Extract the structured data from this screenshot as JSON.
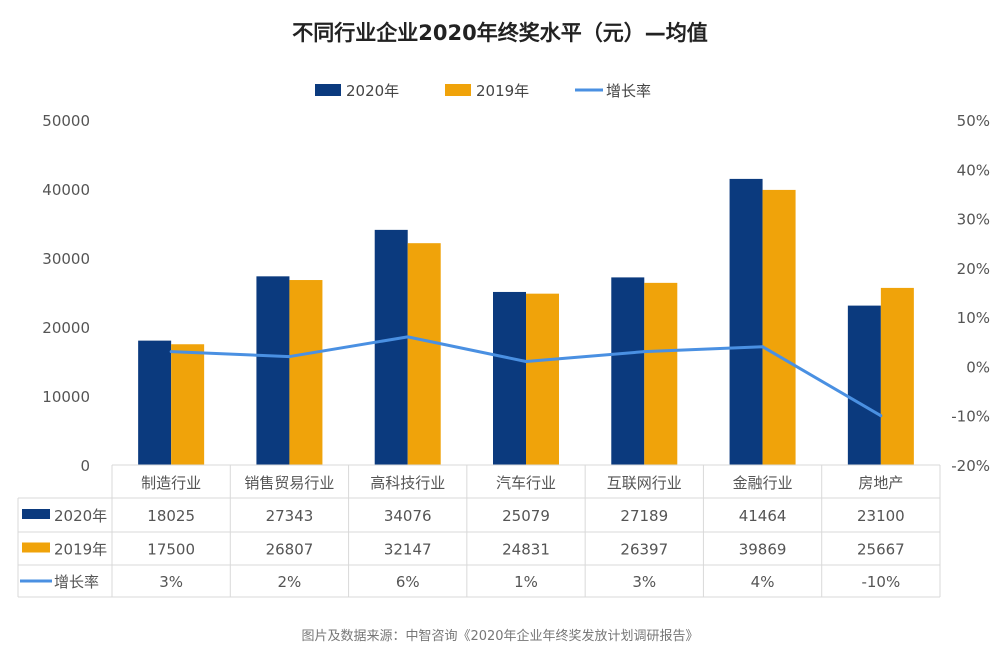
{
  "chart_data": {
    "type": "bar",
    "title": "不同行业企业2020年终奖水平（元）—均值",
    "categories": [
      "制造行业",
      "销售贸易行业",
      "高科技行业",
      "汽车行业",
      "互联网行业",
      "金融行业",
      "房地产"
    ],
    "series": [
      {
        "name": "2020年",
        "type": "bar",
        "axis": "left",
        "color": "#0B3A7E",
        "values": [
          18025,
          27343,
          34076,
          25079,
          27189,
          41464,
          23100
        ]
      },
      {
        "name": "2019年",
        "type": "bar",
        "axis": "left",
        "color": "#F0A30A",
        "values": [
          17500,
          26807,
          32147,
          24831,
          26397,
          39869,
          25667
        ]
      },
      {
        "name": "增长率",
        "type": "line",
        "axis": "right",
        "color": "#4A90E2",
        "values": [
          3,
          2,
          6,
          1,
          3,
          4,
          -10
        ],
        "labels": [
          "3%",
          "2%",
          "6%",
          "1%",
          "3%",
          "4%",
          "-10%"
        ]
      }
    ],
    "y_left": {
      "range": [
        0,
        50000
      ],
      "ticks": [
        "0",
        "10000",
        "20000",
        "30000",
        "40000",
        "50000"
      ]
    },
    "y_right": {
      "range": [
        -20,
        50
      ],
      "ticks": [
        "-20%",
        "-10%",
        "0%",
        "10%",
        "20%",
        "30%",
        "40%",
        "50%"
      ]
    },
    "legend": "top",
    "grid": false,
    "data_table": true,
    "source": "图片及数据来源：中智咨询《2020年企业年终奖发放计划调研报告》"
  }
}
